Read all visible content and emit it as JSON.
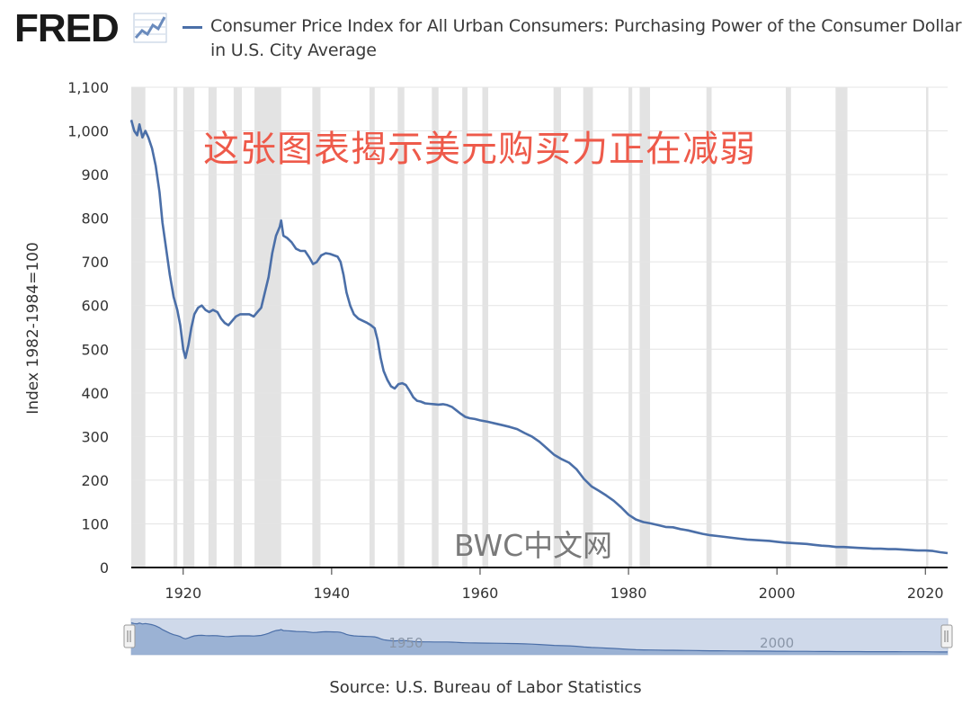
{
  "header": {
    "logo_text": "FRED",
    "logo_icon": "line-chart-icon",
    "legend_label": "Consumer Price Index for All Urban Consumers: Purchasing Power of the Consumer Dollar in U.S. City Average",
    "series_color": "#4b6fa8"
  },
  "overlay": {
    "annotation_cn": "这张图表揭示美元购买力正在减弱",
    "annotation_color": "#ee5a4a",
    "watermark": "BWC中文网"
  },
  "navigator": {
    "tick_labels": [
      "1950",
      "2000"
    ],
    "handle_left_icon": "drag-handle-icon",
    "handle_right_icon": "drag-handle-icon"
  },
  "footer": {
    "source": "Source: U.S. Bureau of Labor Statistics"
  },
  "chart_data": {
    "type": "line",
    "title": "",
    "xlabel": "",
    "ylabel": "Index 1982-1984=100",
    "xlim": [
      1913,
      2023
    ],
    "ylim": [
      0,
      1100
    ],
    "x_ticks": [
      1920,
      1940,
      1960,
      1980,
      2000,
      2020
    ],
    "y_ticks": [
      0,
      100,
      200,
      300,
      400,
      500,
      600,
      700,
      800,
      900,
      1000,
      1100
    ],
    "y_tick_labels": [
      "0",
      "100",
      "200",
      "300",
      "400",
      "500",
      "600",
      "700",
      "800",
      "900",
      "1,000",
      "1,100"
    ],
    "grid": "horizontal",
    "recessions": [
      [
        1913.0,
        1914.9
      ],
      [
        1918.7,
        1919.2
      ],
      [
        1920.0,
        1921.5
      ],
      [
        1923.4,
        1924.5
      ],
      [
        1926.8,
        1927.9
      ],
      [
        1929.6,
        1933.2
      ],
      [
        1937.4,
        1938.5
      ],
      [
        1945.1,
        1945.8
      ],
      [
        1948.9,
        1949.8
      ],
      [
        1953.5,
        1954.4
      ],
      [
        1957.6,
        1958.3
      ],
      [
        1960.3,
        1961.1
      ],
      [
        1969.9,
        1970.9
      ],
      [
        1973.9,
        1975.2
      ],
      [
        1980.0,
        1980.5
      ],
      [
        1981.5,
        1982.9
      ],
      [
        1990.5,
        1991.2
      ],
      [
        2001.2,
        2001.9
      ],
      [
        2007.9,
        2009.5
      ],
      [
        2020.1,
        2020.4
      ]
    ],
    "series": [
      {
        "name": "Consumer Price Index for All Urban Consumers: Purchasing Power of the Consumer Dollar in U.S. City Average",
        "color": "#4b6fa8",
        "points": [
          [
            1913.0,
            1025
          ],
          [
            1913.4,
            1000
          ],
          [
            1913.8,
            990
          ],
          [
            1914.1,
            1015
          ],
          [
            1914.5,
            985
          ],
          [
            1914.9,
            1000
          ],
          [
            1915.3,
            985
          ],
          [
            1915.8,
            960
          ],
          [
            1916.3,
            920
          ],
          [
            1916.8,
            860
          ],
          [
            1917.2,
            790
          ],
          [
            1917.7,
            730
          ],
          [
            1918.2,
            670
          ],
          [
            1918.7,
            620
          ],
          [
            1919.2,
            590
          ],
          [
            1919.6,
            555
          ],
          [
            1920.0,
            500
          ],
          [
            1920.3,
            480
          ],
          [
            1920.7,
            510
          ],
          [
            1921.1,
            550
          ],
          [
            1921.5,
            580
          ],
          [
            1922.0,
            595
          ],
          [
            1922.5,
            600
          ],
          [
            1923.0,
            590
          ],
          [
            1923.5,
            585
          ],
          [
            1924.0,
            590
          ],
          [
            1924.6,
            585
          ],
          [
            1925.1,
            570
          ],
          [
            1925.6,
            560
          ],
          [
            1926.1,
            555
          ],
          [
            1926.6,
            565
          ],
          [
            1927.1,
            575
          ],
          [
            1927.7,
            580
          ],
          [
            1928.3,
            580
          ],
          [
            1928.9,
            580
          ],
          [
            1929.5,
            575
          ],
          [
            1930.0,
            585
          ],
          [
            1930.5,
            595
          ],
          [
            1931.0,
            630
          ],
          [
            1931.5,
            665
          ],
          [
            1932.0,
            720
          ],
          [
            1932.5,
            760
          ],
          [
            1933.0,
            780
          ],
          [
            1933.2,
            795
          ],
          [
            1933.5,
            760
          ],
          [
            1934.0,
            755
          ],
          [
            1934.6,
            745
          ],
          [
            1935.2,
            730
          ],
          [
            1935.8,
            725
          ],
          [
            1936.4,
            725
          ],
          [
            1937.0,
            710
          ],
          [
            1937.5,
            695
          ],
          [
            1938.0,
            700
          ],
          [
            1938.6,
            715
          ],
          [
            1939.2,
            720
          ],
          [
            1939.8,
            718
          ],
          [
            1940.3,
            715
          ],
          [
            1940.8,
            712
          ],
          [
            1941.2,
            700
          ],
          [
            1941.6,
            670
          ],
          [
            1942.0,
            630
          ],
          [
            1942.5,
            600
          ],
          [
            1943.0,
            580
          ],
          [
            1943.6,
            570
          ],
          [
            1944.2,
            565
          ],
          [
            1944.8,
            560
          ],
          [
            1945.3,
            555
          ],
          [
            1945.8,
            548
          ],
          [
            1946.2,
            520
          ],
          [
            1946.6,
            480
          ],
          [
            1947.0,
            450
          ],
          [
            1947.5,
            430
          ],
          [
            1948.0,
            415
          ],
          [
            1948.5,
            410
          ],
          [
            1949.0,
            420
          ],
          [
            1949.5,
            422
          ],
          [
            1950.0,
            418
          ],
          [
            1950.5,
            405
          ],
          [
            1951.0,
            390
          ],
          [
            1951.5,
            382
          ],
          [
            1952.0,
            380
          ],
          [
            1952.6,
            376
          ],
          [
            1953.2,
            375
          ],
          [
            1953.8,
            374
          ],
          [
            1954.4,
            373
          ],
          [
            1955.0,
            374
          ],
          [
            1955.6,
            372
          ],
          [
            1956.2,
            368
          ],
          [
            1956.8,
            360
          ],
          [
            1957.4,
            352
          ],
          [
            1958.0,
            345
          ],
          [
            1958.6,
            342
          ],
          [
            1959.3,
            340
          ],
          [
            1960.0,
            337
          ],
          [
            1961.0,
            334
          ],
          [
            1962.0,
            330
          ],
          [
            1963.0,
            326
          ],
          [
            1964.0,
            322
          ],
          [
            1965.0,
            317
          ],
          [
            1966.0,
            308
          ],
          [
            1967.0,
            300
          ],
          [
            1968.0,
            288
          ],
          [
            1969.0,
            273
          ],
          [
            1970.0,
            258
          ],
          [
            1971.0,
            248
          ],
          [
            1972.0,
            240
          ],
          [
            1973.0,
            225
          ],
          [
            1974.0,
            203
          ],
          [
            1975.0,
            186
          ],
          [
            1976.0,
            176
          ],
          [
            1977.0,
            165
          ],
          [
            1978.0,
            153
          ],
          [
            1979.0,
            138
          ],
          [
            1980.0,
            121
          ],
          [
            1981.0,
            110
          ],
          [
            1982.0,
            104
          ],
          [
            1983.0,
            101
          ],
          [
            1984.0,
            97
          ],
          [
            1985.0,
            93
          ],
          [
            1986.0,
            92
          ],
          [
            1987.0,
            88
          ],
          [
            1988.0,
            85
          ],
          [
            1989.0,
            81
          ],
          [
            1990.0,
            77
          ],
          [
            1991.0,
            74
          ],
          [
            1992.0,
            72
          ],
          [
            1993.0,
            70
          ],
          [
            1994.0,
            68
          ],
          [
            1995.0,
            66
          ],
          [
            1996.0,
            64
          ],
          [
            1997.0,
            63
          ],
          [
            1998.0,
            62
          ],
          [
            1999.0,
            61
          ],
          [
            2000.0,
            59
          ],
          [
            2001.0,
            57
          ],
          [
            2002.0,
            56
          ],
          [
            2003.0,
            55
          ],
          [
            2004.0,
            54
          ],
          [
            2005.0,
            52
          ],
          [
            2006.0,
            50
          ],
          [
            2007.0,
            49
          ],
          [
            2008.0,
            47
          ],
          [
            2009.0,
            47
          ],
          [
            2010.0,
            46
          ],
          [
            2011.0,
            45
          ],
          [
            2012.0,
            44
          ],
          [
            2013.0,
            43
          ],
          [
            2014.0,
            43
          ],
          [
            2015.0,
            42
          ],
          [
            2016.0,
            42
          ],
          [
            2017.0,
            41
          ],
          [
            2018.0,
            40
          ],
          [
            2019.0,
            39
          ],
          [
            2020.0,
            39
          ],
          [
            2021.0,
            38
          ],
          [
            2022.0,
            35
          ],
          [
            2023.0,
            33
          ]
        ]
      }
    ]
  }
}
